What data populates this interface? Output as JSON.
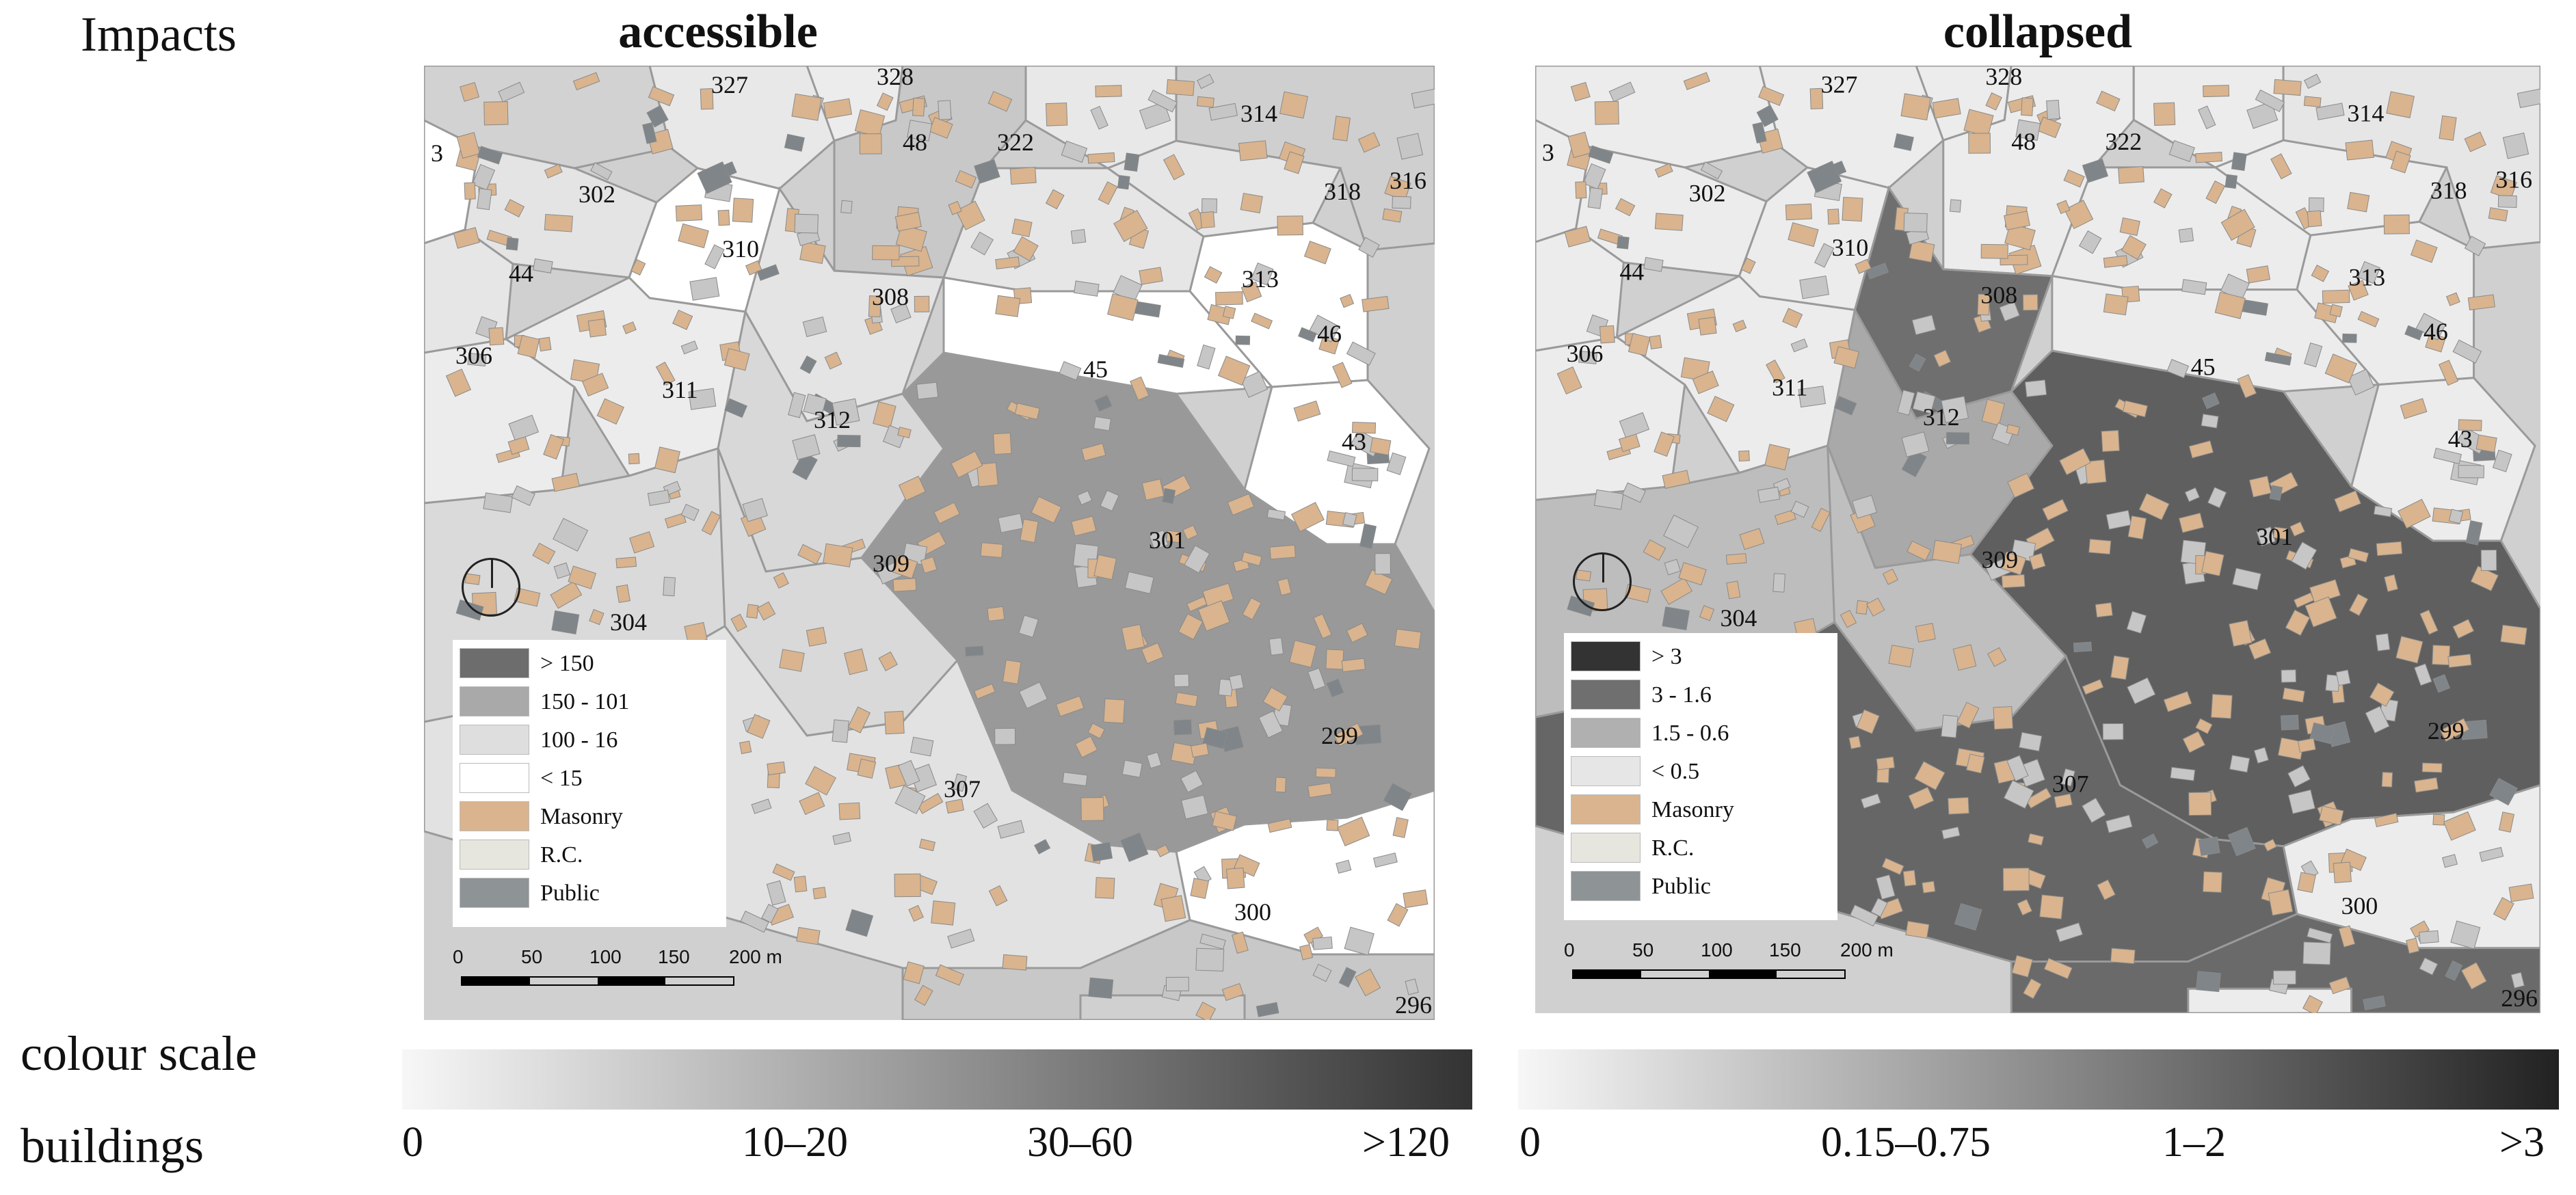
{
  "row_labels": {
    "impacts": "Impacts",
    "colour_scale": "colour scale",
    "buildings": "buildings"
  },
  "maps": [
    {
      "title": "accessible",
      "zone_fills": {
        "301": "#999999",
        "302": "#e4e4e4",
        "304": "#dadada",
        "306": "#ececec",
        "307": "#e2e2e2",
        "308": "#e4e4e4",
        "309": "#d9d9d9",
        "310": "#ffffff",
        "311": "#ececec",
        "312": "#d8d8d8",
        "313": "#e6e6e6",
        "314": "#e8e8e8",
        "316": "#cfcfcf",
        "318": "#e6e6e6",
        "322": "#c8c8c8",
        "327": "#d2d2d2",
        "328": "#ececec",
        "48": "#e8e8e8",
        "44": "#e6e6e6",
        "45": "#ffffff",
        "46": "#ffffff",
        "43": "#ffffff",
        "299": "#ffffff",
        "300": "#c8c8c8",
        "296": "#d0d0d0",
        "3": "#ffffff"
      },
      "legend": [
        {
          "label": "> 150",
          "color": "#6d6d6d"
        },
        {
          "label": "150 - 101",
          "color": "#a9a9a9"
        },
        {
          "label": "100 - 16",
          "color": "#dedede"
        },
        {
          "label": "< 15",
          "color": "#ffffff"
        },
        {
          "label": "Masonry",
          "color": "#d9b48e"
        },
        {
          "label": "R.C.",
          "color": "#e6e6df"
        },
        {
          "label": "Public",
          "color": "#8e9396"
        }
      ],
      "scalebar": {
        "labels": [
          "0",
          "50",
          "100",
          "150",
          "200 m"
        ]
      }
    },
    {
      "title": "collapsed",
      "zone_fills": {
        "301": "#5f5f5f",
        "302": "#ececec",
        "304": "#bdbdbd",
        "306": "#ececec",
        "307": "#666666",
        "308": "#6f6f6f",
        "309": "#bfbfbf",
        "310": "#ececec",
        "311": "#ececec",
        "312": "#a9a9a9",
        "313": "#ececec",
        "314": "#ececec",
        "316": "#e6e6e6",
        "318": "#ececec",
        "322": "#ececec",
        "327": "#ececec",
        "328": "#ececec",
        "48": "#ececec",
        "44": "#ececec",
        "45": "#ececec",
        "46": "#ececec",
        "43": "#ececec",
        "299": "#ececec",
        "300": "#6a6a6a",
        "296": "#ececec",
        "3": "#ececec"
      },
      "legend": [
        {
          "label": "> 3",
          "color": "#333333"
        },
        {
          "label": "3 - 1.6",
          "color": "#6f6f6f"
        },
        {
          "label": "1.5 - 0.6",
          "color": "#b0b0b0"
        },
        {
          "label": "< 0.5",
          "color": "#e6e6e6"
        },
        {
          "label": "Masonry",
          "color": "#d9b48e"
        },
        {
          "label": "R.C.",
          "color": "#e6e6df"
        },
        {
          "label": "Public",
          "color": "#8e9396"
        }
      ],
      "scalebar": {
        "labels": [
          "0",
          "50",
          "100",
          "150",
          "200 m"
        ]
      }
    }
  ],
  "colour_scales": [
    {
      "from": "#f7f7f7",
      "to": "#333333",
      "ticks": [
        "0",
        "10–20",
        "30–60",
        ">120"
      ]
    },
    {
      "from": "#f7f7f7",
      "to": "#222222",
      "ticks": [
        "0",
        "0.15–0.75",
        "1–2",
        ">3"
      ]
    }
  ]
}
